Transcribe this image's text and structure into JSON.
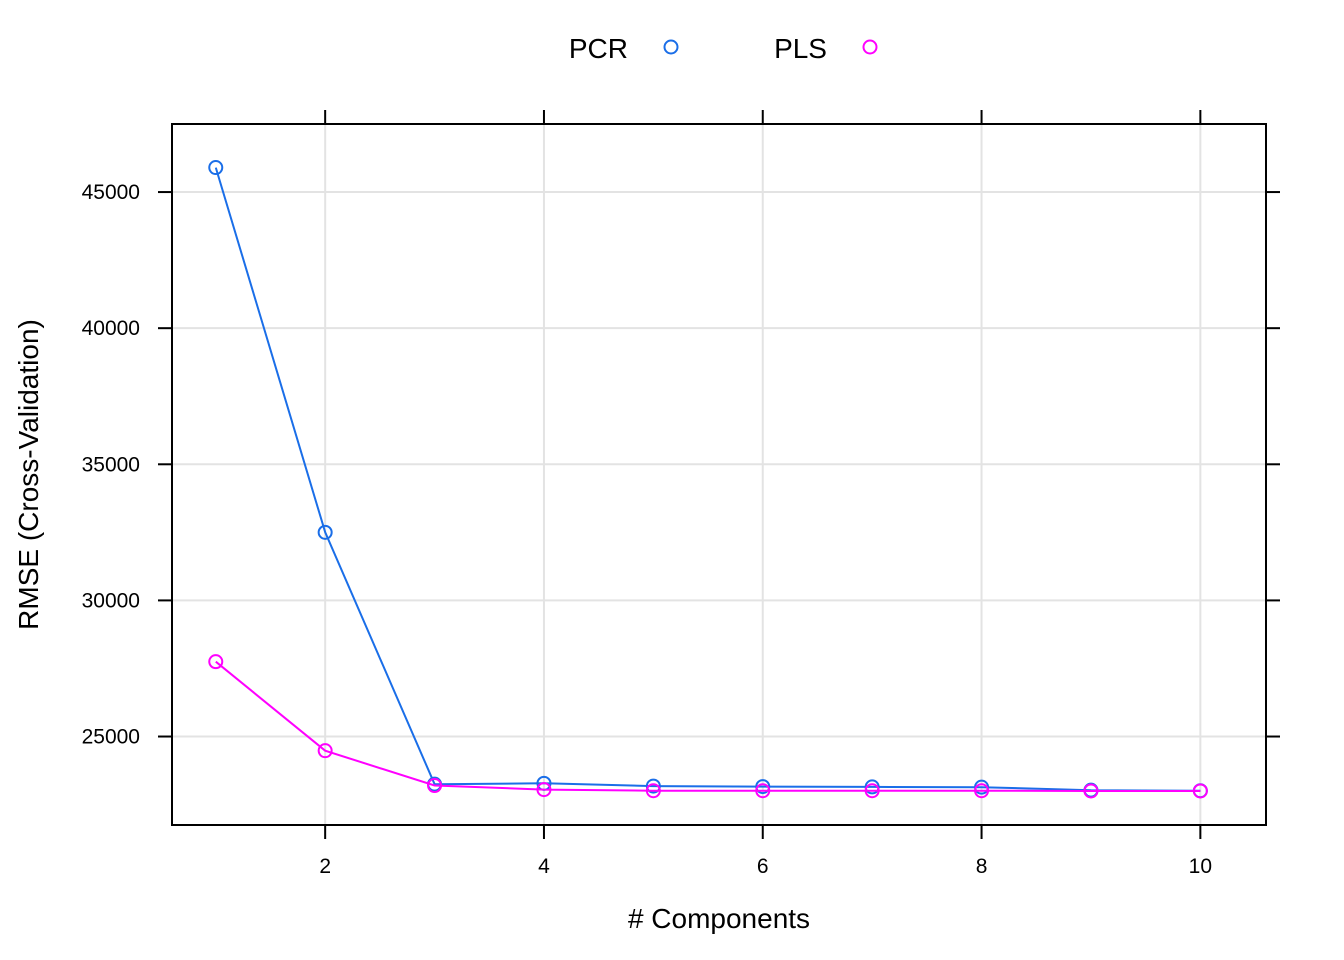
{
  "chart_data": {
    "type": "line",
    "title": "",
    "xlabel": "# Components",
    "ylabel": "RMSE (Cross-Validation)",
    "x": [
      1,
      2,
      3,
      4,
      5,
      6,
      7,
      8,
      9,
      10
    ],
    "xlim": [
      0.6,
      10.6
    ],
    "ylim": [
      21750,
      47500
    ],
    "xticks": [
      2,
      4,
      6,
      8,
      10
    ],
    "yticks": [
      25000,
      30000,
      35000,
      40000,
      45000
    ],
    "grid": true,
    "legend": "top",
    "series": [
      {
        "name": "PCR",
        "color": "#1a6ee8",
        "values": [
          45900,
          32500,
          23250,
          23280,
          23180,
          23160,
          23150,
          23140,
          23030,
          23010
        ]
      },
      {
        "name": "PLS",
        "color": "#ff00ff",
        "values": [
          27750,
          24480,
          23200,
          23050,
          23010,
          23010,
          23010,
          23010,
          23000,
          23000
        ]
      }
    ]
  }
}
